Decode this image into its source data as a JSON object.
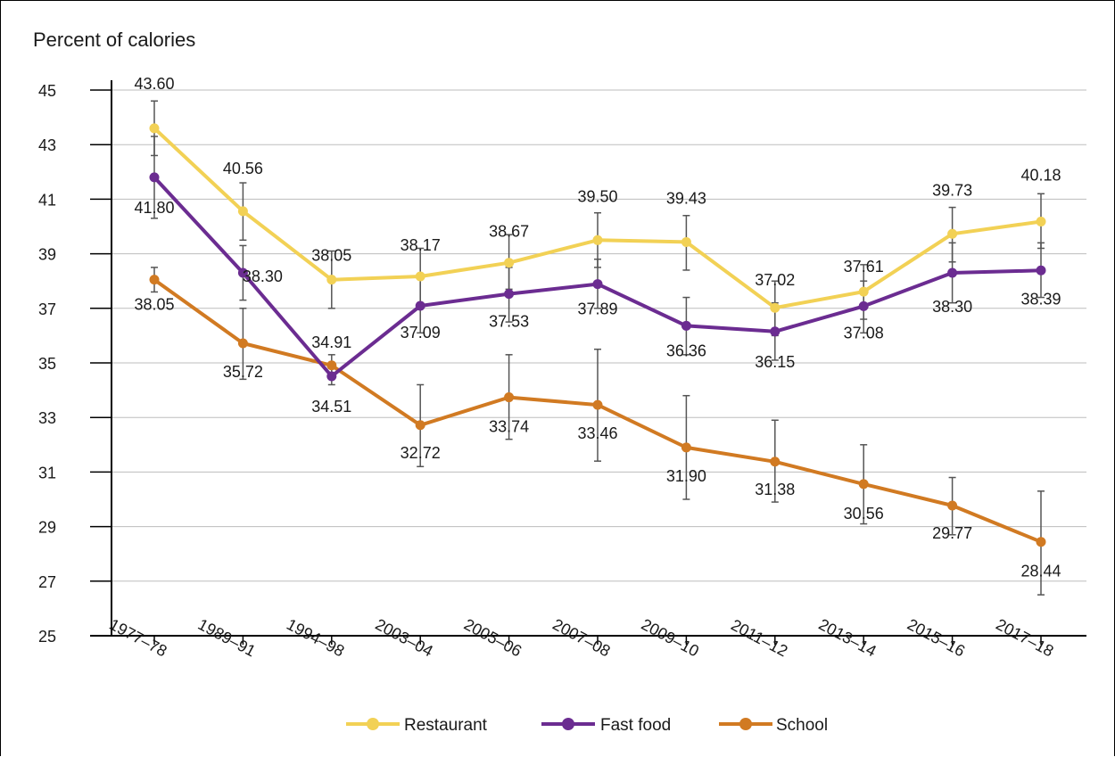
{
  "chart_data": {
    "type": "line",
    "ylabel": "Percent of calories",
    "xlabel": "",
    "title": "",
    "ylim": [
      25,
      45
    ],
    "yticks": [
      25,
      27,
      29,
      31,
      33,
      35,
      37,
      39,
      41,
      43,
      45
    ],
    "grid": "horizontal",
    "legend_position": "bottom",
    "categories": [
      "1977–78",
      "1989–91",
      "1994–98",
      "2003–04",
      "2005–06",
      "2007–08",
      "2009–10",
      "2011–12",
      "2013–14",
      "2015–16",
      "2017–18"
    ],
    "series": [
      {
        "name": "Restaurant",
        "color": "#f2d155",
        "values": [
          43.6,
          40.56,
          38.05,
          38.17,
          38.67,
          39.5,
          39.43,
          37.02,
          37.61,
          39.73,
          40.18
        ],
        "labels": [
          "43.60",
          "40.56",
          "38.05",
          "38.17",
          "38.67",
          "39.50",
          "39.43",
          "37.02",
          "37.61",
          "39.73",
          "40.18"
        ],
        "error_low": [
          42.6,
          39.5,
          37.0,
          37.2,
          37.7,
          38.5,
          38.4,
          36.0,
          36.6,
          38.7,
          39.2
        ],
        "error_high": [
          44.6,
          41.6,
          39.1,
          39.2,
          39.7,
          40.5,
          40.4,
          38.0,
          38.6,
          40.7,
          41.2
        ]
      },
      {
        "name": "Fast food",
        "color": "#6b2c91",
        "values": [
          41.8,
          38.3,
          34.51,
          37.09,
          37.53,
          37.89,
          36.36,
          36.15,
          37.08,
          38.3,
          38.39
        ],
        "labels": [
          "41.80",
          "38.30",
          "34.51",
          "37.09",
          "37.53",
          "37.89",
          "36.36",
          "36.15",
          "37.08",
          "38.30",
          "38.39"
        ],
        "error_low": [
          40.3,
          37.3,
          34.2,
          36.1,
          36.5,
          37.0,
          35.3,
          35.1,
          36.1,
          37.2,
          37.4
        ],
        "error_high": [
          43.3,
          39.3,
          34.8,
          38.1,
          38.5,
          38.8,
          37.4,
          37.2,
          38.0,
          39.4,
          39.4
        ]
      },
      {
        "name": "School",
        "color": "#d17a22",
        "values": [
          38.05,
          35.72,
          34.91,
          32.72,
          33.74,
          33.46,
          31.9,
          31.38,
          30.56,
          29.77,
          28.44
        ],
        "labels": [
          "38.05",
          "35.72",
          "34.91",
          "32.72",
          "33.74",
          "33.46",
          "31.90",
          "31.38",
          "30.56",
          "29.77",
          "28.44"
        ],
        "error_low": [
          37.6,
          34.4,
          34.5,
          31.2,
          32.2,
          31.4,
          30.0,
          29.9,
          29.1,
          28.7,
          26.5
        ],
        "error_high": [
          38.5,
          37.0,
          35.3,
          34.2,
          35.3,
          35.5,
          33.8,
          32.9,
          32.0,
          30.8,
          30.3
        ]
      }
    ]
  }
}
